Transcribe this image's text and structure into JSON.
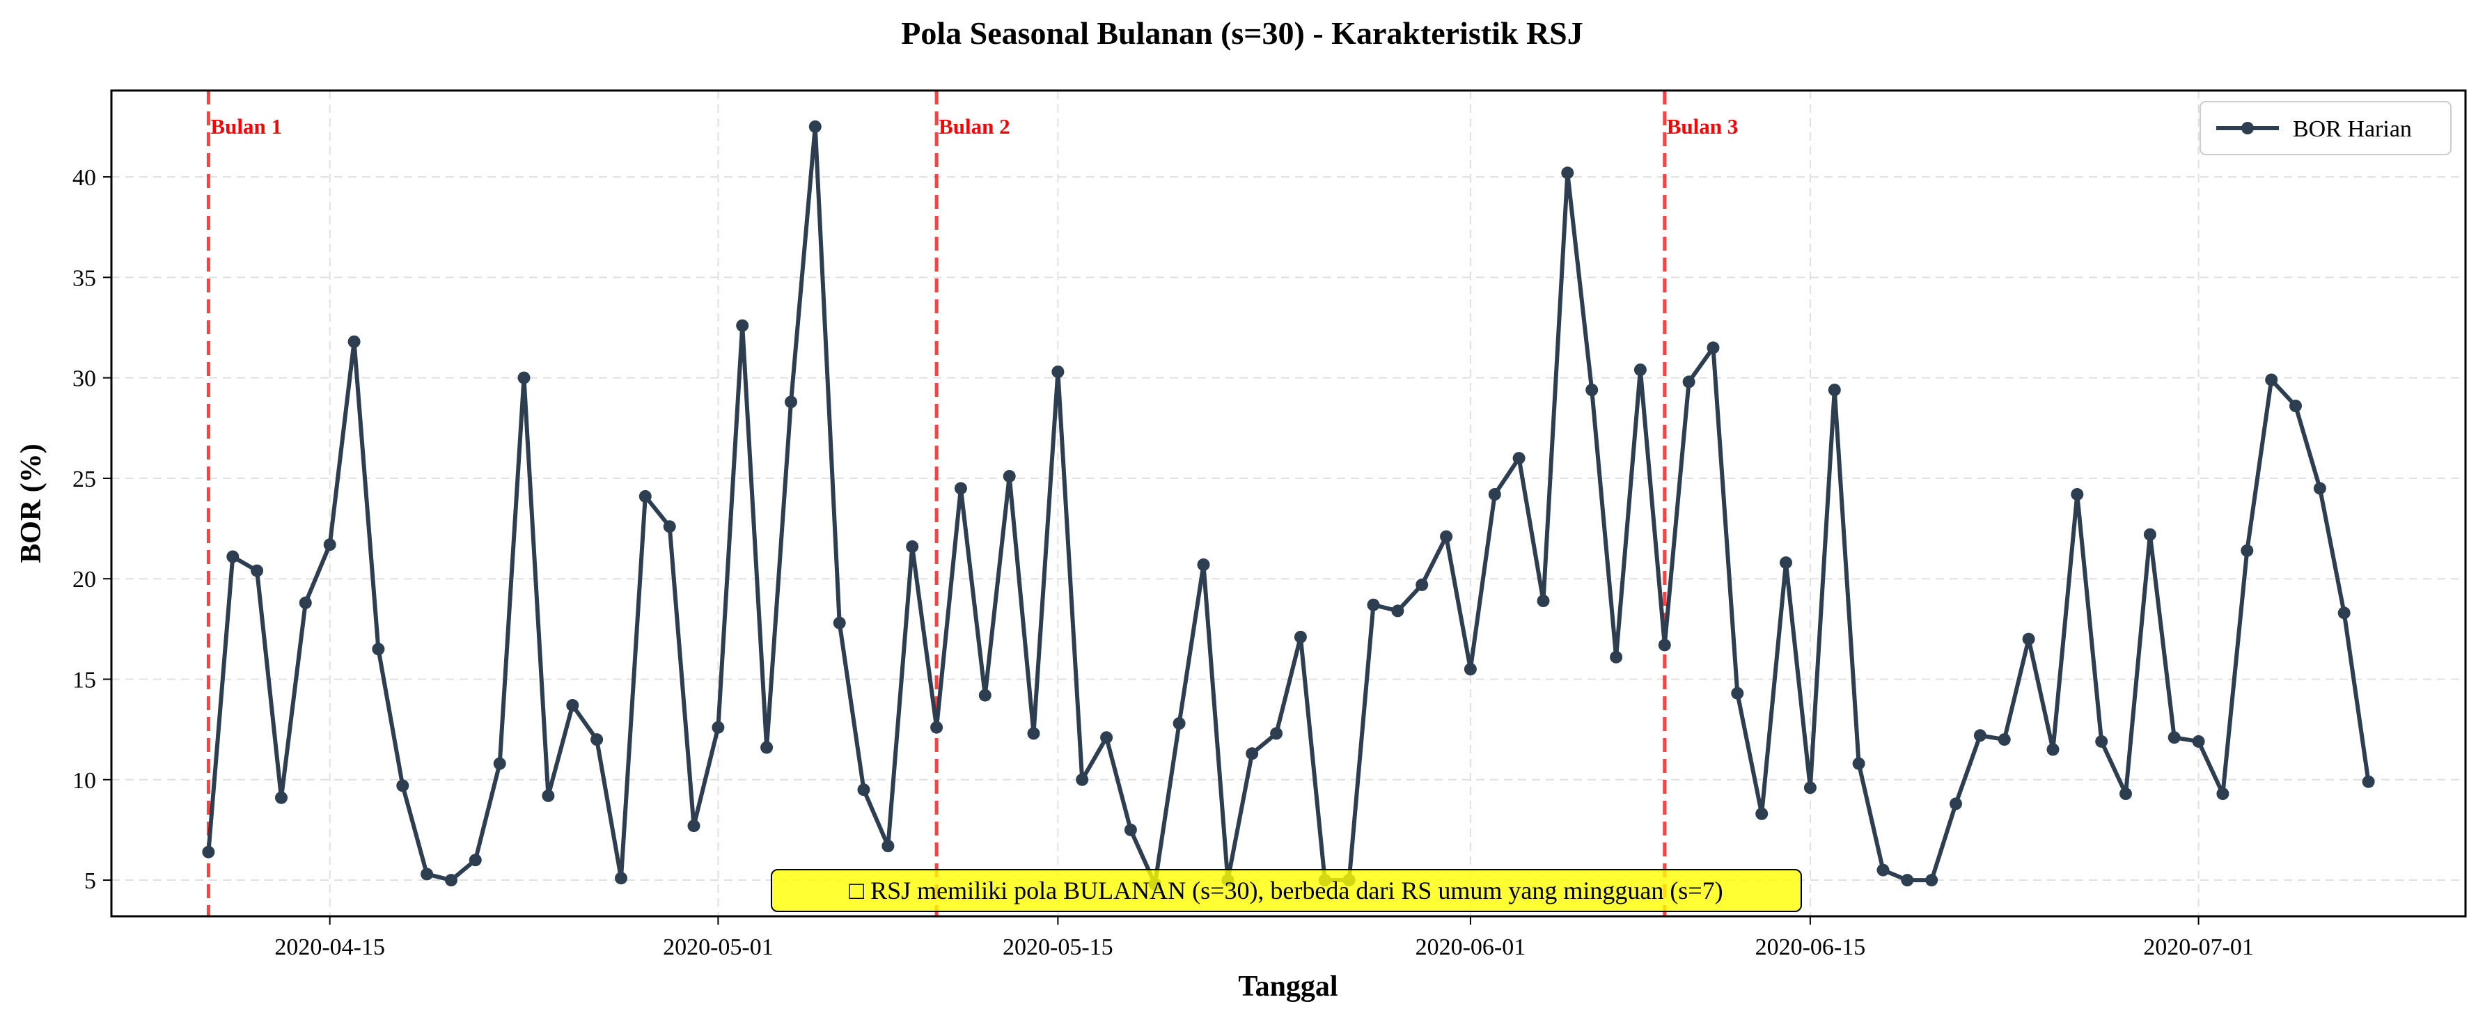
{
  "chart_data": {
    "type": "line",
    "title": "Pola Seasonal Bulanan (s=30) - Karakteristik RSJ",
    "xlabel": "Tanggal",
    "ylabel": "BOR (%)",
    "x_start": "2020-04-10",
    "x_step_days": 1,
    "xlim": [
      "2020-04-06",
      "2020-07-12"
    ],
    "ylim": [
      3.2,
      44.3
    ],
    "x_ticks": [
      "2020-04-15",
      "2020-05-01",
      "2020-05-15",
      "2020-06-01",
      "2020-06-15",
      "2020-07-01"
    ],
    "y_ticks": [
      5,
      10,
      15,
      20,
      25,
      30,
      35,
      40
    ],
    "grid": true,
    "legend_position": "top-right",
    "series": [
      {
        "name": "BOR Harian",
        "color": "#2c3e50",
        "values": [
          6.4,
          21.1,
          20.4,
          9.1,
          18.8,
          21.7,
          31.8,
          16.5,
          9.7,
          5.3,
          5.0,
          6.0,
          10.8,
          30.0,
          9.2,
          13.7,
          12.0,
          5.1,
          24.1,
          22.6,
          7.7,
          12.6,
          32.6,
          11.6,
          28.8,
          42.5,
          17.8,
          9.5,
          6.7,
          21.6,
          12.6,
          24.5,
          14.2,
          25.1,
          12.3,
          30.3,
          10.0,
          12.1,
          7.5,
          4.8,
          12.8,
          20.7,
          5.0,
          11.3,
          12.3,
          17.1,
          5.0,
          5.0,
          18.7,
          18.4,
          19.7,
          22.1,
          15.5,
          24.2,
          26.0,
          18.9,
          40.2,
          29.4,
          16.1,
          30.4,
          16.7,
          29.8,
          31.5,
          14.3,
          8.3,
          20.8,
          9.6,
          29.4,
          10.8,
          5.5,
          5.0,
          5.0,
          8.8,
          12.2,
          12.0,
          17.0,
          11.5,
          24.2,
          11.9,
          9.3,
          22.2,
          12.1,
          11.9,
          9.3,
          21.4,
          29.9,
          28.6,
          24.5,
          18.3,
          9.9
        ]
      }
    ],
    "vertical_lines": [
      {
        "label": "Bulan 1",
        "date": "2020-04-10",
        "color": "#ff0000"
      },
      {
        "label": "Bulan 2",
        "date": "2020-05-10",
        "color": "#ff0000"
      },
      {
        "label": "Bulan 3",
        "date": "2020-06-09",
        "color": "#ff0000"
      }
    ],
    "annotation": {
      "text": "□ RSJ memiliki pola BULANAN (s=30), berbeda dari RS umum yang mingguan (s=7)",
      "background": "#ffff00"
    }
  }
}
